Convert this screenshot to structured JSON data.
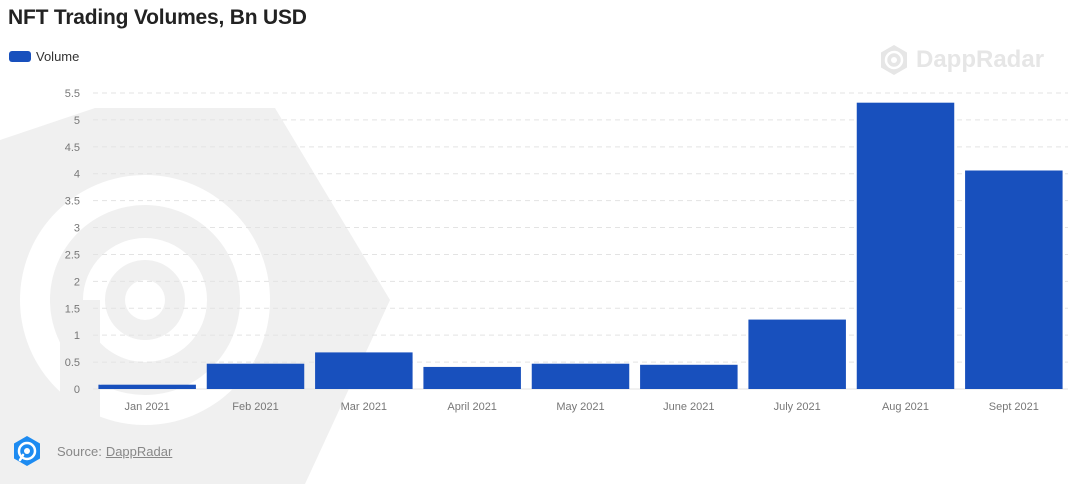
{
  "colors": {
    "bar": "#1850bd",
    "grid": "#e3e3e3",
    "axis_text": "#777777",
    "watermark": "#efefef"
  },
  "header": {
    "title": "NFT Trading Volumes, Bn USD"
  },
  "legend": {
    "label": "Volume"
  },
  "watermark": {
    "brand": "DappRadar"
  },
  "source": {
    "prefix": "Source:",
    "link": "DappRadar"
  },
  "chart_data": {
    "type": "bar",
    "title": "NFT Trading Volumes, Bn USD",
    "xlabel": "",
    "ylabel": "",
    "categories": [
      "Jan 2021",
      "Feb 2021",
      "Mar 2021",
      "April 2021",
      "May 2021",
      "June 2021",
      "July 2021",
      "Aug 2021",
      "Sept 2021"
    ],
    "series": [
      {
        "name": "Volume",
        "values": [
          0.08,
          0.47,
          0.68,
          0.41,
          0.47,
          0.45,
          1.29,
          5.32,
          4.06
        ]
      }
    ],
    "ylim": [
      0,
      5.5
    ],
    "yticks": [
      0,
      0.5,
      1,
      1.5,
      2,
      2.5,
      3,
      3.5,
      4,
      4.5,
      5,
      5.5
    ],
    "grid": true,
    "legend_position": "top-left"
  }
}
